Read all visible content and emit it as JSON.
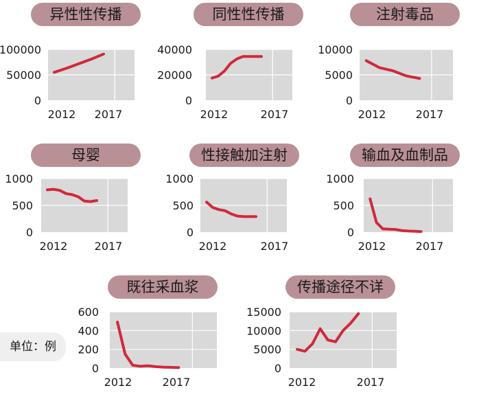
{
  "unit_label": "单位：例",
  "colors": {
    "line": "#d0293a",
    "plot_bg": "#d9d9d9",
    "title_pill": "#b99096",
    "grid": "#ffffff"
  },
  "chart_data": [
    {
      "type": "line",
      "title": "异性性传播",
      "x": [
        2012,
        2013,
        2014,
        2015,
        2016
      ],
      "y": [
        55000,
        63000,
        72000,
        81000,
        91000
      ],
      "xticks": [
        2012,
        2017
      ],
      "xlim": [
        2011.5,
        2018.5
      ],
      "yticks": [
        0,
        50000,
        100000
      ],
      "ylim": [
        0,
        100000
      ],
      "grid": true
    },
    {
      "type": "line",
      "title": "同性性传播",
      "x": [
        2012,
        2012.5,
        2013,
        2013.5,
        2014,
        2014.5,
        2015,
        2015.5,
        2016
      ],
      "y": [
        17500,
        19000,
        23000,
        29000,
        32500,
        34500,
        34500,
        34500,
        34500
      ],
      "xticks": [
        2012,
        2017
      ],
      "xlim": [
        2011.5,
        2018.5
      ],
      "yticks": [
        0,
        20000,
        40000
      ],
      "ylim": [
        0,
        40000
      ],
      "grid": true
    },
    {
      "type": "line",
      "title": "注射毒品",
      "x": [
        2012,
        2013,
        2014,
        2015,
        2016
      ],
      "y": [
        7800,
        6400,
        5800,
        4800,
        4300
      ],
      "xticks": [
        2012,
        2017
      ],
      "xlim": [
        2011.5,
        2018.5
      ],
      "yticks": [
        0,
        5000,
        10000
      ],
      "ylim": [
        0,
        10000
      ],
      "grid": true
    },
    {
      "type": "line",
      "title": "母婴",
      "x": [
        2012,
        2012.5,
        2013,
        2013.5,
        2014,
        2014.5,
        2015,
        2015.5,
        2016
      ],
      "y": [
        790,
        800,
        780,
        720,
        700,
        660,
        580,
        570,
        590
      ],
      "xticks": [
        2012,
        2017
      ],
      "xlim": [
        2011.5,
        2018.5
      ],
      "yticks": [
        0,
        500,
        1000
      ],
      "ylim": [
        0,
        1000
      ],
      "grid": true
    },
    {
      "type": "line",
      "title": "性接触加注射",
      "x": [
        2012,
        2012.5,
        2013,
        2013.5,
        2014,
        2014.5,
        2015,
        2015.5,
        2016
      ],
      "y": [
        560,
        460,
        420,
        400,
        340,
        300,
        290,
        290,
        290
      ],
      "xticks": [
        2012,
        2017
      ],
      "xlim": [
        2011.5,
        2018.5
      ],
      "yticks": [
        0,
        500,
        1000
      ],
      "ylim": [
        0,
        1000
      ],
      "grid": true
    },
    {
      "type": "line",
      "title": "输血及血制品",
      "x": [
        2012,
        2012.5,
        2013,
        2013.5,
        2014,
        2014.5,
        2015,
        2015.5,
        2016
      ],
      "y": [
        620,
        180,
        60,
        55,
        50,
        30,
        20,
        15,
        10
      ],
      "xticks": [
        2012,
        2017
      ],
      "xlim": [
        2011.5,
        2018.5
      ],
      "yticks": [
        0,
        500,
        1000
      ],
      "ylim": [
        0,
        1000
      ],
      "grid": true
    },
    {
      "type": "line",
      "title": "既往采血浆",
      "x": [
        2012,
        2012.5,
        2013,
        2013.5,
        2014,
        2014.5,
        2015,
        2015.5,
        2016
      ],
      "y": [
        490,
        150,
        30,
        20,
        25,
        15,
        10,
        8,
        5
      ],
      "xticks": [
        2012,
        2017
      ],
      "xlim": [
        2011.5,
        2018.5
      ],
      "yticks": [
        0,
        200,
        400,
        600
      ],
      "ylim": [
        0,
        600
      ],
      "grid": true
    },
    {
      "type": "line",
      "title": "传播途径不详",
      "x": [
        2012,
        2012.5,
        2013,
        2013.5,
        2014,
        2014.5,
        2015,
        2015.5,
        2016
      ],
      "y": [
        5000,
        4500,
        6500,
        10500,
        7500,
        7000,
        10000,
        12000,
        14500
      ],
      "xticks": [
        2012,
        2017
      ],
      "xlim": [
        2011.5,
        2018.5
      ],
      "yticks": [
        0,
        5000,
        10000,
        15000
      ],
      "ylim": [
        0,
        15000
      ],
      "grid": true
    }
  ]
}
